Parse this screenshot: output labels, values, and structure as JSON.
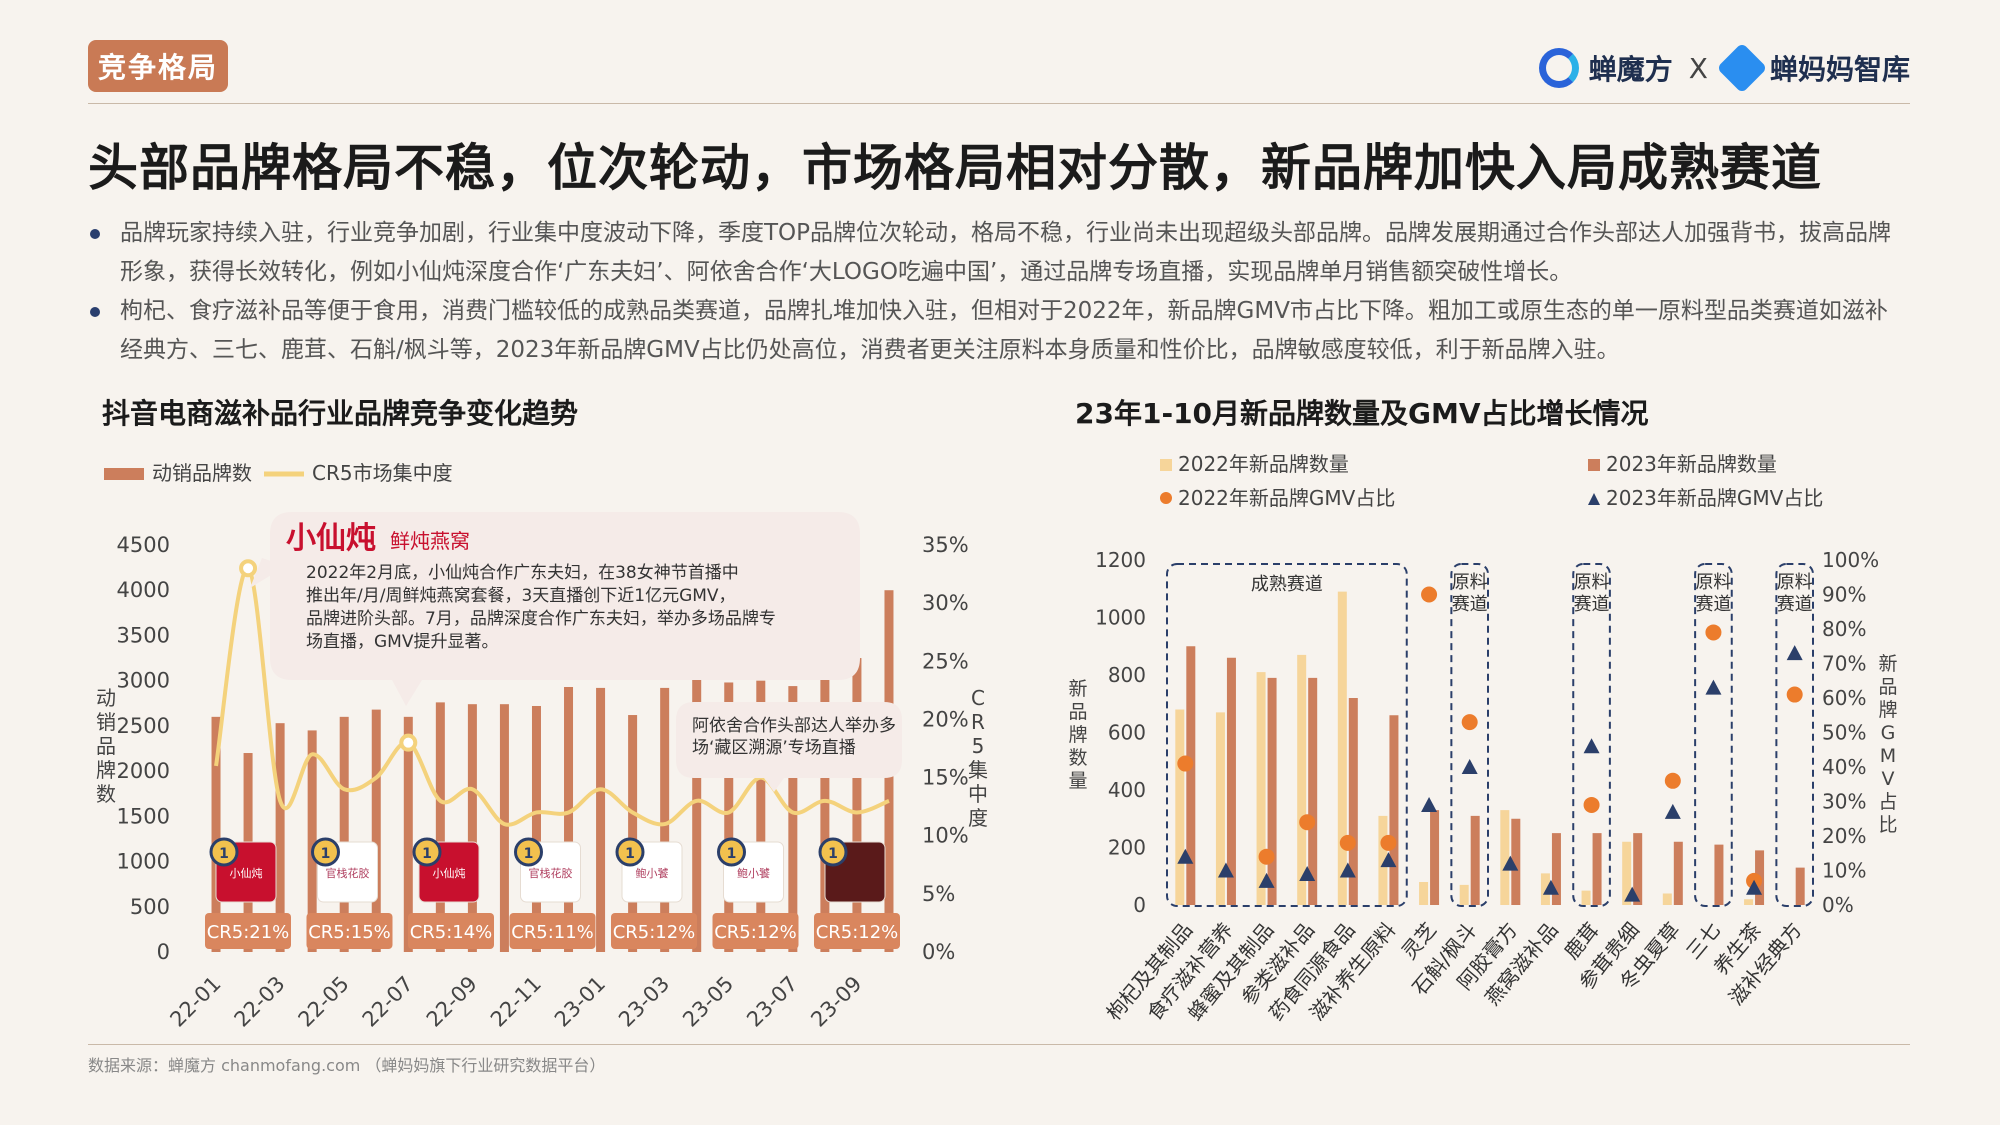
{
  "section_tag": "竞争格局",
  "brand": {
    "name1": "蝉魔方",
    "sep": "X",
    "name2": "蝉妈妈智库"
  },
  "headline": "头部品牌格局不稳，位次轮动，市场格局相对分散，新品牌加快入局成熟赛道",
  "bullets": [
    "品牌玩家持续入驻，行业竞争加剧，行业集中度波动下降，季度TOP品牌位次轮动，格局不稳，行业尚未出现超级头部品牌。品牌发展期通过合作头部达人加强背书，拔高品牌形象，获得长效转化，例如小仙炖深度合作‘广东夫妇’、阿依舍合作‘大LOGO吃遍中国’，通过品牌专场直播，实现品牌单月销售额突破性增长。",
    "枸杞、食疗滋补品等便于食用，消费门槛较低的成熟品类赛道，品牌扎堆加快入驻，但相对于2022年，新品牌GMV市占比下降。粗加工或原生态的单一原料型品类赛道如滋补经典方、三七、鹿茸、石斛/枫斗等，2023年新品牌GMV占比仍处高位，消费者更关注原料本身质量和性价比，品牌敏感度较低，利于新品牌入驻。"
  ],
  "source": "数据来源：蝉魔方 chanmofang.com （蝉妈妈旗下行业研究数据平台）",
  "colors": {
    "bar": "#cc7e5c",
    "bar_light": "#f6d59a",
    "line": "#f4d27c",
    "dot": "#ec7c2c",
    "tri": "#2b3f6a",
    "badge": "#d9865e",
    "box": "#2b3f6a"
  },
  "left": {
    "legend_bar": "动销品牌数",
    "legend_line": "CR5市场集中度",
    "callout1_logo": "小仙炖",
    "callout1_logo_sub": "鲜炖燕窝",
    "callout1_text": "2022年2月底，小仙炖合作广东夫妇，在38女神节首播中推出年/月/周鲜炖燕窝套餐，3天直播创下近1亿元GMV，品牌进阶头部。7月，品牌深度合作广东夫妇，举办多场品牌专场直播，GMV提升显著。",
    "callout2_text": "阿依舍合作头部达人举办多场‘藏区溯源’专场直播",
    "badges": [
      "CR5:21%",
      "CR5:15%",
      "CR5:14%",
      "CR5:11%",
      "CR5:12%",
      "CR5:12%",
      "CR5:12%"
    ],
    "badge_logos": [
      "小仙炖",
      "官栈花胶",
      "小仙炖",
      "官栈花胶",
      "鲍小饕",
      "鲍小饕",
      ""
    ],
    "medal": "1"
  },
  "right": {
    "legend": [
      "2022年新品牌数量",
      "2023年新品牌数量",
      "2022年新品牌GMV占比",
      "2023年新品牌GMV占比"
    ],
    "boxes": [
      "成熟赛道",
      "原料赛道",
      "原料赛道",
      "原料赛道",
      "原料赛道"
    ]
  },
  "chart_data": [
    {
      "type": "bar",
      "title": "抖音电商滋补品行业品牌竞争变化趋势",
      "x": [
        "22-01",
        "22-02",
        "22-03",
        "22-04",
        "22-05",
        "22-06",
        "22-07",
        "22-08",
        "22-09",
        "22-10",
        "22-11",
        "22-12",
        "23-01",
        "23-02",
        "23-03",
        "23-04",
        "23-05",
        "23-06",
        "23-07",
        "23-08",
        "23-09",
        "23-10"
      ],
      "x_tick_labels": [
        "22-01",
        "22-03",
        "22-05",
        "22-07",
        "22-09",
        "22-11",
        "23-01",
        "23-03",
        "23-05",
        "23-07",
        "23-09"
      ],
      "series": [
        {
          "name": "动销品牌数",
          "type": "bar",
          "axis": "left",
          "values": [
            2600,
            2200,
            2530,
            2450,
            2600,
            2680,
            2600,
            2760,
            2740,
            2740,
            2720,
            2930,
            2920,
            2620,
            2920,
            3100,
            2980,
            3000,
            2940,
            3020,
            3250,
            4000
          ]
        },
        {
          "name": "CR5市场集中度",
          "type": "line",
          "axis": "right",
          "values": [
            0.16,
            0.33,
            0.13,
            0.17,
            0.14,
            0.15,
            0.18,
            0.13,
            0.14,
            0.11,
            0.12,
            0.12,
            0.14,
            0.12,
            0.11,
            0.13,
            0.12,
            0.15,
            0.12,
            0.13,
            0.12,
            0.13
          ]
        }
      ],
      "ylabel": "动销品牌数",
      "ylim": [
        0,
        4500
      ],
      "yticks": [
        0,
        500,
        1000,
        1500,
        2000,
        2500,
        3000,
        3500,
        4000,
        4500
      ],
      "y2label": "CR5集中度",
      "y2lim": [
        0,
        0.35
      ],
      "y2ticks": [
        "0%",
        "5%",
        "10%",
        "15%",
        "20%",
        "25%",
        "30%",
        "35%"
      ],
      "legend_position": "top-left"
    },
    {
      "type": "bar",
      "title": "23年1-10月新品牌数量及GMV占比增长情况",
      "categories": [
        "枸杞及其制品",
        "食疗滋补营养",
        "蜂蜜及其制品",
        "参类滋补品",
        "药食同源食品",
        "滋补养生原料",
        "灵芝",
        "石斛/枫斗",
        "阿胶膏方",
        "燕窝滋补品",
        "鹿茸",
        "参茸贵细",
        "冬虫夏草",
        "三七",
        "养生茶",
        "滋补经典方"
      ],
      "series": [
        {
          "name": "2022年新品牌数量",
          "type": "bar",
          "axis": "left",
          "values": [
            680,
            670,
            810,
            870,
            1090,
            310,
            80,
            70,
            330,
            110,
            50,
            220,
            40,
            0,
            20,
            0
          ]
        },
        {
          "name": "2023年新品牌数量",
          "type": "bar",
          "axis": "left",
          "values": [
            900,
            860,
            790,
            790,
            720,
            660,
            330,
            310,
            300,
            250,
            250,
            250,
            220,
            210,
            190,
            130
          ]
        },
        {
          "name": "2022年新品牌GMV占比",
          "type": "scatter",
          "axis": "right",
          "values": [
            0.41,
            null,
            0.14,
            0.24,
            0.18,
            0.18,
            0.9,
            0.53,
            null,
            null,
            0.29,
            null,
            0.36,
            0.79,
            0.07,
            0.61
          ]
        },
        {
          "name": "2023年新品牌GMV占比",
          "type": "scatter",
          "axis": "right",
          "values": [
            0.14,
            0.1,
            0.07,
            0.09,
            0.1,
            0.13,
            0.29,
            0.4,
            0.12,
            0.05,
            0.46,
            0.03,
            0.27,
            0.63,
            0.05,
            0.73
          ]
        }
      ],
      "ylabel": "新品牌数量",
      "ylim": [
        0,
        1200
      ],
      "yticks": [
        0,
        200,
        400,
        600,
        800,
        1000,
        1200
      ],
      "y2label": "新品牌GMV占比",
      "y2lim": [
        0,
        1
      ],
      "y2ticks": [
        "0%",
        "10%",
        "20%",
        "30%",
        "40%",
        "50%",
        "60%",
        "70%",
        "80%",
        "90%",
        "100%"
      ],
      "legend_position": "top"
    }
  ]
}
